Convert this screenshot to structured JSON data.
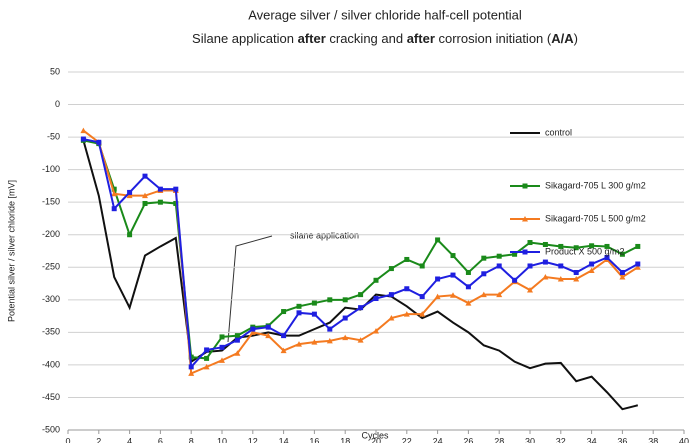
{
  "chart_data": {
    "type": "line",
    "title": "Average silver / silver chloride half-cell potential",
    "subtitle": [
      {
        "text": "Silane application ",
        "bold": false
      },
      {
        "text": "after",
        "bold": true
      },
      {
        "text": " cracking and ",
        "bold": false
      },
      {
        "text": "after",
        "bold": true
      },
      {
        "text": " corrosion initiation (",
        "bold": false
      },
      {
        "text": "A/A",
        "bold": true
      },
      {
        "text": ")",
        "bold": false
      }
    ],
    "x_label": "Cycles",
    "y_label": "Potential silver / silver chloride [mV]",
    "annotation": "silane application",
    "x": [
      1,
      2,
      3,
      4,
      5,
      6,
      7,
      8,
      9,
      10,
      11,
      12,
      13,
      14,
      15,
      16,
      17,
      18,
      19,
      20,
      21,
      22,
      23,
      24,
      25,
      26,
      27,
      28,
      29,
      30,
      31,
      32,
      33,
      34,
      35,
      36,
      37
    ],
    "series": [
      {
        "name": "control",
        "color": "#111111",
        "marker": "none",
        "values": [
          -55,
          -140,
          -265,
          -312,
          -232,
          -218,
          -205,
          -395,
          -380,
          -378,
          -358,
          -355,
          -350,
          -355,
          -355,
          -345,
          -335,
          -312,
          -315,
          -292,
          -295,
          -310,
          -328,
          -318,
          -335,
          -350,
          -370,
          -378,
          -395,
          -405,
          -398,
          -397,
          -425,
          -418,
          -442,
          -468,
          -462
        ]
      },
      {
        "name": "Sikagard-705 L 300 g/m2",
        "color": "#1a8a1a",
        "marker": "square",
        "values": [
          -55,
          -60,
          -130,
          -200,
          -152,
          -150,
          -152,
          -388,
          -390,
          -357,
          -355,
          -342,
          -340,
          -318,
          -310,
          -305,
          -300,
          -300,
          -292,
          -270,
          -252,
          -238,
          -248,
          -208,
          -232,
          -258,
          -236,
          -233,
          -230,
          -212,
          -215,
          -218,
          -220,
          -217,
          -218,
          -230,
          -218
        ]
      },
      {
        "name": "Sikagard-705 L 500 g/m2",
        "color": "#f47a20",
        "marker": "triangle",
        "values": [
          -40,
          -58,
          -137,
          -140,
          -140,
          -132,
          -132,
          -413,
          -403,
          -393,
          -382,
          -350,
          -355,
          -378,
          -368,
          -365,
          -363,
          -358,
          -362,
          -348,
          -328,
          -322,
          -322,
          -295,
          -293,
          -305,
          -292,
          -292,
          -272,
          -285,
          -265,
          -268,
          -268,
          -255,
          -238,
          -265,
          -250
        ]
      },
      {
        "name": "Product X 500 g/m2",
        "color": "#1f1fe0",
        "marker": "square",
        "values": [
          -53,
          -58,
          -160,
          -135,
          -110,
          -130,
          -130,
          -403,
          -377,
          -373,
          -362,
          -345,
          -342,
          -355,
          -320,
          -322,
          -345,
          -328,
          -312,
          -298,
          -292,
          -283,
          -295,
          -268,
          -262,
          -280,
          -260,
          -248,
          -270,
          -248,
          -242,
          -248,
          -258,
          -245,
          -235,
          -258,
          -245
        ]
      }
    ],
    "xlim": [
      0,
      40
    ],
    "xticks": [
      0,
      2,
      4,
      6,
      8,
      10,
      12,
      14,
      16,
      18,
      20,
      22,
      24,
      26,
      28,
      30,
      32,
      34,
      36,
      38,
      40
    ],
    "ylim": [
      -500,
      50
    ],
    "yticks": [
      50,
      0,
      -50,
      -100,
      -150,
      -200,
      -250,
      -300,
      -350,
      -400,
      -450,
      -500
    ],
    "grid": true,
    "legend": "right"
  }
}
